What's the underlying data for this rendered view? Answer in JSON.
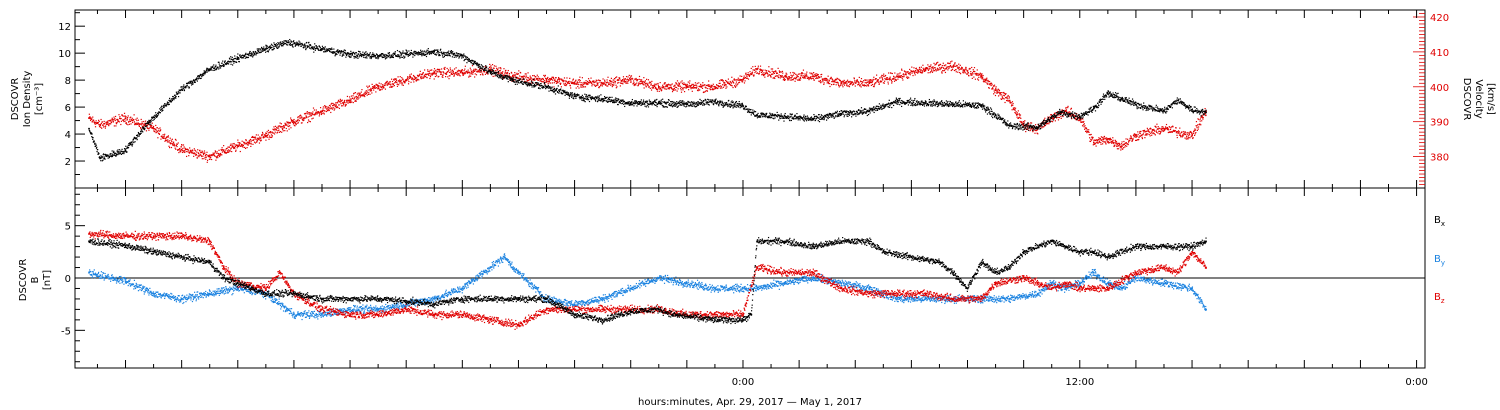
{
  "chart_data": [
    {
      "type": "scatter",
      "panel": "plasma",
      "left_axis": {
        "label_lines": [
          "DSCOVR",
          "Ion Density",
          "[cm⁻³]"
        ],
        "ticks": [
          2,
          4,
          6,
          8,
          10,
          12
        ],
        "ylim": [
          0,
          13.2
        ],
        "color": "#000000"
      },
      "right_axis": {
        "label_lines": [
          "DSCOVR",
          "Velocity",
          "[km/s]"
        ],
        "ticks": [
          380,
          390,
          400,
          410,
          420
        ],
        "ylim": [
          371,
          422
        ],
        "color": "#e00000"
      },
      "series": [
        {
          "axis": "left",
          "color": "#000000",
          "points": [
            [
              -23.3,
              4.4
            ],
            [
              -22.9,
              2.2
            ],
            [
              -22.0,
              2.8
            ],
            [
              -21.2,
              4.8
            ],
            [
              -20.0,
              7.3
            ],
            [
              -19.0,
              8.8
            ],
            [
              -18.0,
              9.6
            ],
            [
              -17.0,
              10.3
            ],
            [
              -16.2,
              10.8
            ],
            [
              -15.0,
              10.3
            ],
            [
              -14.0,
              9.9
            ],
            [
              -13.0,
              9.8
            ],
            [
              -12.0,
              9.9
            ],
            [
              -11.0,
              10.1
            ],
            [
              -10.0,
              9.8
            ],
            [
              -9.0,
              8.6
            ],
            [
              -8.2,
              8.0
            ],
            [
              -7.0,
              7.5
            ],
            [
              -6.0,
              6.8
            ],
            [
              -5.0,
              6.6
            ],
            [
              -4.0,
              6.3
            ],
            [
              -3.0,
              6.3
            ],
            [
              -2.0,
              6.2
            ],
            [
              -1.0,
              6.4
            ],
            [
              0.0,
              6.1
            ],
            [
              0.5,
              5.4
            ],
            [
              1.5,
              5.3
            ],
            [
              2.5,
              5.1
            ],
            [
              3.5,
              5.5
            ],
            [
              4.5,
              5.7
            ],
            [
              5.5,
              6.4
            ],
            [
              6.5,
              6.3
            ],
            [
              7.5,
              6.2
            ],
            [
              8.5,
              6.1
            ],
            [
              9.0,
              5.4
            ],
            [
              9.5,
              4.6
            ],
            [
              10.5,
              4.5
            ],
            [
              11.3,
              5.6
            ],
            [
              12.0,
              5.3
            ],
            [
              12.5,
              5.9
            ],
            [
              13.0,
              7.0
            ],
            [
              13.5,
              6.6
            ],
            [
              14.0,
              6.2
            ],
            [
              15.0,
              5.7
            ],
            [
              15.5,
              6.5
            ],
            [
              16.0,
              5.8
            ],
            [
              16.5,
              5.6
            ]
          ]
        },
        {
          "axis": "right",
          "color": "#e00000",
          "points": [
            [
              -23.3,
              391
            ],
            [
              -22.9,
              389
            ],
            [
              -22.0,
              391
            ],
            [
              -21.0,
              388
            ],
            [
              -20.0,
              382
            ],
            [
              -19.0,
              380
            ],
            [
              -18.0,
              383
            ],
            [
              -17.0,
              386
            ],
            [
              -16.0,
              390
            ],
            [
              -15.0,
              393
            ],
            [
              -14.0,
              396
            ],
            [
              -13.0,
              400
            ],
            [
              -12.0,
              402
            ],
            [
              -11.0,
              404
            ],
            [
              -10.0,
              404
            ],
            [
              -9.0,
              405
            ],
            [
              -8.2,
              403
            ],
            [
              -7.0,
              402
            ],
            [
              -6.0,
              401
            ],
            [
              -5.0,
              401
            ],
            [
              -4.0,
              402
            ],
            [
              -3.0,
              400
            ],
            [
              -2.0,
              400
            ],
            [
              -1.0,
              400
            ],
            [
              0.0,
              402
            ],
            [
              0.5,
              405
            ],
            [
              1.5,
              403
            ],
            [
              2.5,
              403
            ],
            [
              3.5,
              401
            ],
            [
              4.5,
              401
            ],
            [
              5.5,
              403
            ],
            [
              6.5,
              405
            ],
            [
              7.5,
              406
            ],
            [
              8.5,
              403
            ],
            [
              9.0,
              399
            ],
            [
              9.5,
              396
            ],
            [
              10.0,
              389
            ],
            [
              10.5,
              388
            ],
            [
              11.0,
              391
            ],
            [
              11.5,
              393
            ],
            [
              12.0,
              391
            ],
            [
              12.5,
              384
            ],
            [
              13.0,
              385
            ],
            [
              13.5,
              383
            ],
            [
              14.0,
              386
            ],
            [
              15.0,
              388
            ],
            [
              16.0,
              386
            ],
            [
              16.5,
              393
            ]
          ]
        }
      ]
    },
    {
      "type": "scatter",
      "panel": "magnetic-field",
      "left_axis": {
        "label_lines": [
          "DSCOVR",
          "B",
          "[nT]"
        ],
        "ticks": [
          -5,
          0,
          5
        ],
        "ylim": [
          -8.6,
          8.6
        ],
        "color": "#000000"
      },
      "zero_line": true,
      "series": [
        {
          "name": "Bx",
          "color": "#000000",
          "points": [
            [
              -23.3,
              3.5
            ],
            [
              -22.0,
              3.1
            ],
            [
              -21.0,
              2.5
            ],
            [
              -20.0,
              2.0
            ],
            [
              -19.0,
              1.5
            ],
            [
              -18.5,
              0.0
            ],
            [
              -18.0,
              -0.5
            ],
            [
              -17.0,
              -1.5
            ],
            [
              -16.0,
              -1.5
            ],
            [
              -15.0,
              -2.0
            ],
            [
              -14.0,
              -2.0
            ],
            [
              -13.0,
              -2.0
            ],
            [
              -12.0,
              -2.2
            ],
            [
              -11.0,
              -2.5
            ],
            [
              -10.0,
              -2.0
            ],
            [
              -9.0,
              -2.0
            ],
            [
              -8.0,
              -2.0
            ],
            [
              -7.0,
              -2.0
            ],
            [
              -6.0,
              -3.5
            ],
            [
              -5.0,
              -4.0
            ],
            [
              -4.0,
              -3.2
            ],
            [
              -3.0,
              -3.0
            ],
            [
              -2.5,
              -3.5
            ],
            [
              -1.0,
              -4.0
            ],
            [
              0.0,
              -4.0
            ],
            [
              0.3,
              -3.5
            ],
            [
              0.5,
              3.5
            ],
            [
              1.5,
              3.5
            ],
            [
              2.5,
              3.0
            ],
            [
              3.5,
              3.5
            ],
            [
              4.5,
              3.5
            ],
            [
              5.0,
              2.5
            ],
            [
              6.0,
              2.0
            ],
            [
              7.0,
              1.5
            ],
            [
              7.5,
              0.5
            ],
            [
              8.0,
              -1.0
            ],
            [
              8.5,
              1.5
            ],
            [
              9.0,
              0.5
            ],
            [
              9.5,
              1.0
            ],
            [
              10.0,
              2.5
            ],
            [
              11.0,
              3.5
            ],
            [
              11.5,
              3.0
            ],
            [
              12.0,
              2.5
            ],
            [
              12.5,
              2.5
            ],
            [
              13.0,
              2.0
            ],
            [
              14.0,
              3.0
            ],
            [
              15.0,
              3.0
            ],
            [
              16.0,
              3.0
            ],
            [
              16.5,
              3.5
            ]
          ]
        },
        {
          "name": "By",
          "color": "#1a82e0",
          "points": [
            [
              -23.3,
              0.5
            ],
            [
              -22.5,
              0.0
            ],
            [
              -22.0,
              -0.3
            ],
            [
              -21.0,
              -1.5
            ],
            [
              -20.0,
              -2.0
            ],
            [
              -19.0,
              -1.5
            ],
            [
              -18.0,
              -1.0
            ],
            [
              -17.0,
              -1.5
            ],
            [
              -16.0,
              -3.5
            ],
            [
              -15.0,
              -3.5
            ],
            [
              -14.0,
              -3.0
            ],
            [
              -13.0,
              -3.0
            ],
            [
              -12.0,
              -2.5
            ],
            [
              -11.0,
              -2.0
            ],
            [
              -10.0,
              -1.0
            ],
            [
              -9.0,
              1.0
            ],
            [
              -8.5,
              2.0
            ],
            [
              -8.0,
              0.5
            ],
            [
              -7.0,
              -2.0
            ],
            [
              -6.0,
              -2.5
            ],
            [
              -5.0,
              -2.0
            ],
            [
              -4.0,
              -1.0
            ],
            [
              -3.0,
              0.0
            ],
            [
              -2.0,
              -0.5
            ],
            [
              -1.0,
              -1.0
            ],
            [
              0.0,
              -1.0
            ],
            [
              0.5,
              -1.0
            ],
            [
              1.5,
              -0.5
            ],
            [
              2.5,
              0.0
            ],
            [
              3.5,
              -0.5
            ],
            [
              4.5,
              -1.0
            ],
            [
              5.5,
              -2.0
            ],
            [
              6.5,
              -2.0
            ],
            [
              7.5,
              -2.0
            ],
            [
              8.5,
              -2.0
            ],
            [
              9.5,
              -2.0
            ],
            [
              10.5,
              -1.5
            ],
            [
              11.0,
              -0.5
            ],
            [
              11.5,
              -1.0
            ],
            [
              12.0,
              -0.5
            ],
            [
              12.5,
              0.5
            ],
            [
              13.0,
              -0.5
            ],
            [
              13.5,
              -1.0
            ],
            [
              14.0,
              0.0
            ],
            [
              15.0,
              -0.5
            ],
            [
              16.0,
              -1.0
            ],
            [
              16.5,
              -3.0
            ]
          ]
        },
        {
          "name": "Bz",
          "color": "#e00000",
          "points": [
            [
              -23.3,
              4.2
            ],
            [
              -22.0,
              4.0
            ],
            [
              -21.0,
              4.0
            ],
            [
              -20.0,
              4.0
            ],
            [
              -19.0,
              3.5
            ],
            [
              -18.5,
              1.0
            ],
            [
              -18.0,
              -0.5
            ],
            [
              -17.0,
              -1.0
            ],
            [
              -16.5,
              0.5
            ],
            [
              -16.0,
              -1.5
            ],
            [
              -15.0,
              -3.0
            ],
            [
              -14.0,
              -3.5
            ],
            [
              -13.0,
              -3.5
            ],
            [
              -12.0,
              -3.0
            ],
            [
              -11.0,
              -3.5
            ],
            [
              -10.0,
              -3.5
            ],
            [
              -9.0,
              -4.0
            ],
            [
              -8.0,
              -4.5
            ],
            [
              -7.0,
              -3.0
            ],
            [
              -6.0,
              -3.0
            ],
            [
              -5.0,
              -3.0
            ],
            [
              -4.0,
              -3.0
            ],
            [
              -3.0,
              -3.0
            ],
            [
              -2.0,
              -3.5
            ],
            [
              -1.0,
              -3.5
            ],
            [
              0.0,
              -3.5
            ],
            [
              0.5,
              1.0
            ],
            [
              1.5,
              0.5
            ],
            [
              2.5,
              0.5
            ],
            [
              3.5,
              -1.0
            ],
            [
              4.5,
              -1.5
            ],
            [
              5.5,
              -1.5
            ],
            [
              6.5,
              -1.5
            ],
            [
              7.5,
              -2.0
            ],
            [
              8.5,
              -2.0
            ],
            [
              9.0,
              -0.5
            ],
            [
              10.0,
              0.0
            ],
            [
              10.5,
              -0.5
            ],
            [
              11.0,
              -1.0
            ],
            [
              11.5,
              -0.5
            ],
            [
              12.0,
              -1.0
            ],
            [
              12.5,
              -1.0
            ],
            [
              13.0,
              -1.0
            ],
            [
              14.0,
              0.5
            ],
            [
              15.0,
              1.0
            ],
            [
              15.5,
              0.5
            ],
            [
              16.0,
              2.5
            ],
            [
              16.5,
              1.0
            ]
          ]
        }
      ],
      "legend": [
        {
          "main": "B",
          "sub": "x",
          "color": "#000000"
        },
        {
          "main": "B",
          "sub": "y",
          "color": "#1a82e0"
        },
        {
          "main": "B",
          "sub": "z",
          "color": "#e00000"
        }
      ]
    }
  ],
  "x_axis": {
    "unit": "hours relative to 2017-04-30 00:00",
    "xlim": [
      -23.8,
      24.3
    ],
    "tick_labels": [
      {
        "at": 0,
        "text": "0:00"
      },
      {
        "at": 12,
        "text": "12:00"
      },
      {
        "at": 24,
        "text": "0:00"
      }
    ],
    "major_tick_every_hours": 2,
    "minor_tick_every_hours": 1,
    "label": "hours:minutes, Apr. 29, 2017 — May  1, 2017"
  }
}
